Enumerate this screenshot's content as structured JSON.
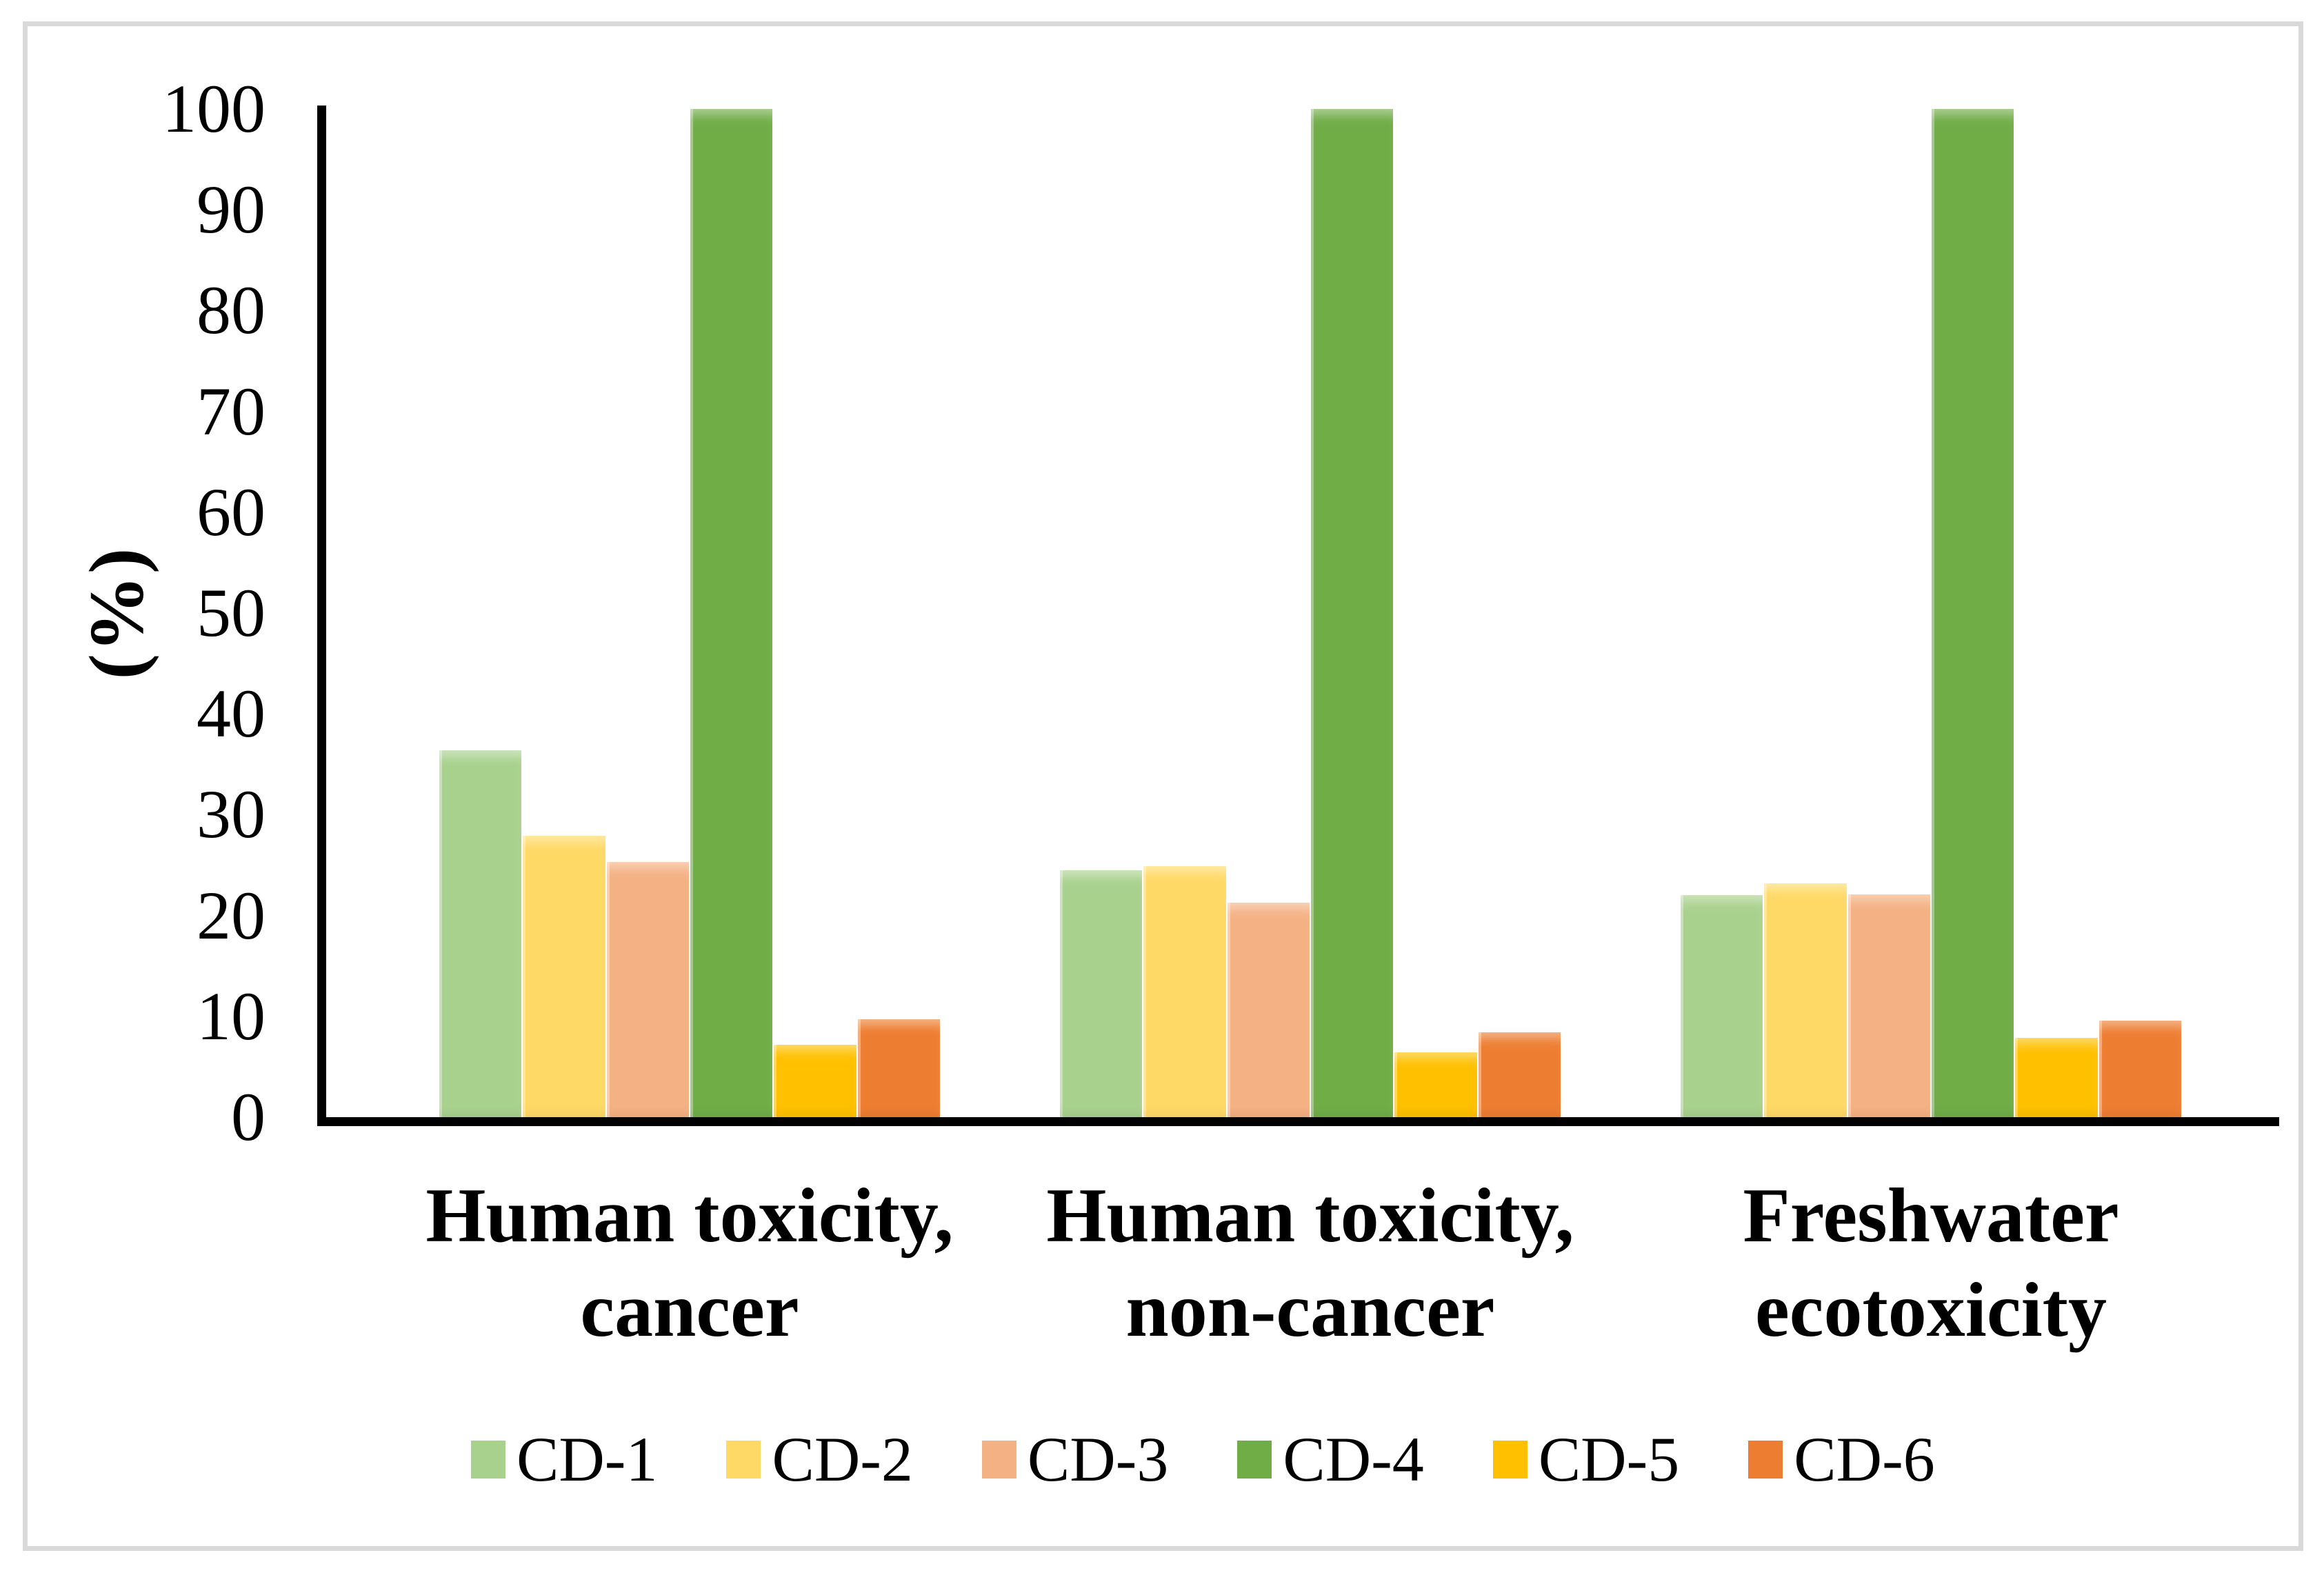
{
  "figure": {
    "border_color": "#d9d9d9",
    "background": "#ffffff"
  },
  "chart_data": {
    "type": "bar",
    "title": "",
    "xlabel": "",
    "ylabel": "(%)",
    "ylim": [
      0,
      100
    ],
    "yticks": [
      0,
      10,
      20,
      30,
      40,
      50,
      60,
      70,
      80,
      90,
      100
    ],
    "grid": false,
    "legend_position": "bottom",
    "categories": [
      "Human toxicity,\ncancer",
      "Human toxicity,\nnon-cancer",
      "Freshwater\necotoxicity"
    ],
    "series": [
      {
        "name": "CD-1",
        "color": "#A9D18E",
        "values": [
          36.4,
          24.5,
          22.0
        ]
      },
      {
        "name": "CD-2",
        "color": "#FFD966",
        "values": [
          27.9,
          24.9,
          23.2
        ]
      },
      {
        "name": "CD-3",
        "color": "#F4B183",
        "values": [
          25.3,
          21.3,
          22.1
        ]
      },
      {
        "name": "CD-4",
        "color": "#70AD47",
        "values": [
          100,
          100,
          100
        ]
      },
      {
        "name": "CD-5",
        "color": "#FFC000",
        "values": [
          7.2,
          6.4,
          7.9
        ]
      },
      {
        "name": "CD-6",
        "color": "#ED7D31",
        "values": [
          9.7,
          8.4,
          9.6
        ]
      }
    ]
  }
}
